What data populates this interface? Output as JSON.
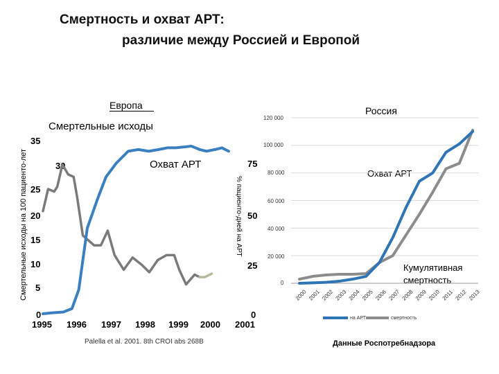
{
  "slide": {
    "title_line1": "Смертность и охват АРТ:",
    "title_line2": "различие между Россией и Европой"
  },
  "chart_data": [
    {
      "type": "line",
      "panel_title": "Европа",
      "x_tick_labels": [
        "1995",
        "1996",
        "1997",
        "1998",
        "1999",
        "2000",
        "2001"
      ],
      "xlim": [
        1995,
        2001
      ],
      "ylabel_left": "Смертельные исходы на 100 пациенто-лет",
      "ylabel_right": "% пациенто-дней на АРТ",
      "left_ticks": [
        "0",
        "5",
        "10",
        "15",
        "20",
        "25",
        "30",
        "35"
      ],
      "right_ticks": [
        "0",
        "25",
        "50",
        "75"
      ],
      "ylim_left": [
        0,
        35
      ],
      "ylim_right": [
        0,
        100
      ],
      "annotations": {
        "deaths": "Смертельные исходы",
        "art": "Охват АРТ"
      },
      "series": [
        {
          "key": "deaths",
          "axis": "left",
          "color": "#7a7a7a",
          "x": [
            1995.0,
            1995.15,
            1995.33,
            1995.42,
            1995.57,
            1995.74,
            1995.9,
            1996.0,
            1996.17,
            1996.5,
            1996.7,
            1996.9,
            1997.1,
            1997.37,
            1997.63,
            1997.9,
            1998.12,
            1998.37,
            1998.63,
            1998.85,
            1999.0,
            1999.2,
            1999.45,
            1999.6,
            1999.75,
            1999.95
          ],
          "y": [
            21,
            25.5,
            25,
            26,
            30.5,
            28.5,
            28,
            24,
            16,
            14,
            14,
            17,
            12,
            9,
            11.5,
            10,
            8.5,
            11,
            12,
            12,
            9,
            6,
            8,
            7.5,
            7.5,
            8.2
          ]
        },
        {
          "key": "art",
          "axis": "right",
          "color": "#3a7fc0",
          "x": [
            1995.0,
            1995.25,
            1995.6,
            1995.85,
            1996.05,
            1996.3,
            1996.6,
            1996.85,
            1997.15,
            1997.5,
            1997.8,
            1998.1,
            1998.4,
            1998.65,
            1998.9,
            1999.15,
            1999.35,
            1999.6,
            1999.8,
            2000.05,
            2000.25,
            2000.45
          ],
          "y": [
            0,
            0.5,
            1,
            3,
            14,
            50,
            67,
            80,
            88,
            95,
            96,
            95,
            96,
            97,
            97,
            97.5,
            98,
            96,
            95,
            96,
            97,
            95
          ]
        }
      ],
      "source": "Palella et al. 2001. 8th CROI abs 268B"
    },
    {
      "type": "line",
      "panel_title": "Россия",
      "categories": [
        "2000",
        "2001",
        "2002",
        "2003",
        "2004",
        "2005",
        "2006",
        "2007",
        "2008",
        "2009",
        "2010",
        "2011",
        "2012",
        "2013"
      ],
      "y_tick_labels": [
        "0",
        "20 000",
        "40 000",
        "60 000",
        "80 000",
        "100 000",
        "120 000"
      ],
      "ylim": [
        0,
        120000
      ],
      "annotations": {
        "art": "Охват АРТ",
        "deaths": "Кумулятивная смертность"
      },
      "series": [
        {
          "name": "на АРТ",
          "color": "#2f75b5",
          "values": [
            0,
            300,
            700,
            1500,
            3000,
            5000,
            15000,
            33000,
            55000,
            74000,
            80000,
            95000,
            101000,
            110000
          ]
        },
        {
          "name": "смертность",
          "color": "#8c8c8c",
          "values": [
            3000,
            5000,
            6000,
            6500,
            6500,
            7000,
            15000,
            20000,
            35000,
            50000,
            66000,
            83000,
            87000,
            111000
          ]
        }
      ],
      "source": "Данные Роспотребнадзора"
    }
  ]
}
